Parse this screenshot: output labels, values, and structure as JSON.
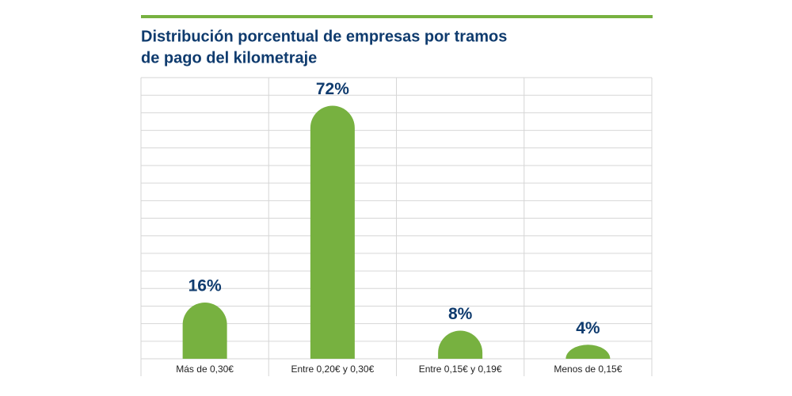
{
  "chart_data": {
    "type": "bar",
    "title": [
      "Distribución porcentual de empresas por tramos",
      "de pago del kilometraje"
    ],
    "categories": [
      "Más de 0,30€",
      "Entre 0,20€ y 0,30€",
      "Entre 0,15€ y 0,19€",
      "Menos de 0,15€"
    ],
    "values": [
      16,
      72,
      8,
      4
    ],
    "value_labels": [
      "16%",
      "72%",
      "8%",
      "4%"
    ],
    "color": "#77b140",
    "ylim": [
      0,
      80
    ],
    "yticks": [
      0,
      5,
      10,
      15,
      20,
      25,
      30,
      35,
      40,
      45,
      50,
      55,
      60,
      65,
      70,
      75,
      80
    ],
    "grid": true
  }
}
